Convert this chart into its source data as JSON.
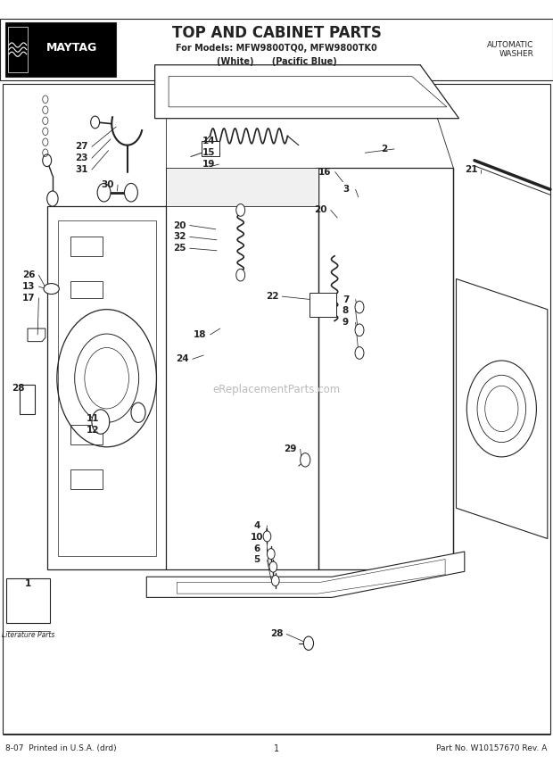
{
  "title": "TOP AND CABINET PARTS",
  "subtitle_line1": "For Models: MFW9800TQ0, MFW9800TK0",
  "subtitle_line2": "(White)      (Pacific Blue)",
  "brand": "MAYTAG",
  "top_right": "AUTOMATIC\nWASHER",
  "footer_left": "8-07  Printed in U.S.A. (drd)",
  "footer_center": "1",
  "footer_right": "Part No. W10157670 Rev. A",
  "watermark": "eReplacementParts.com",
  "bg_color": "#ffffff",
  "line_color": "#222222"
}
